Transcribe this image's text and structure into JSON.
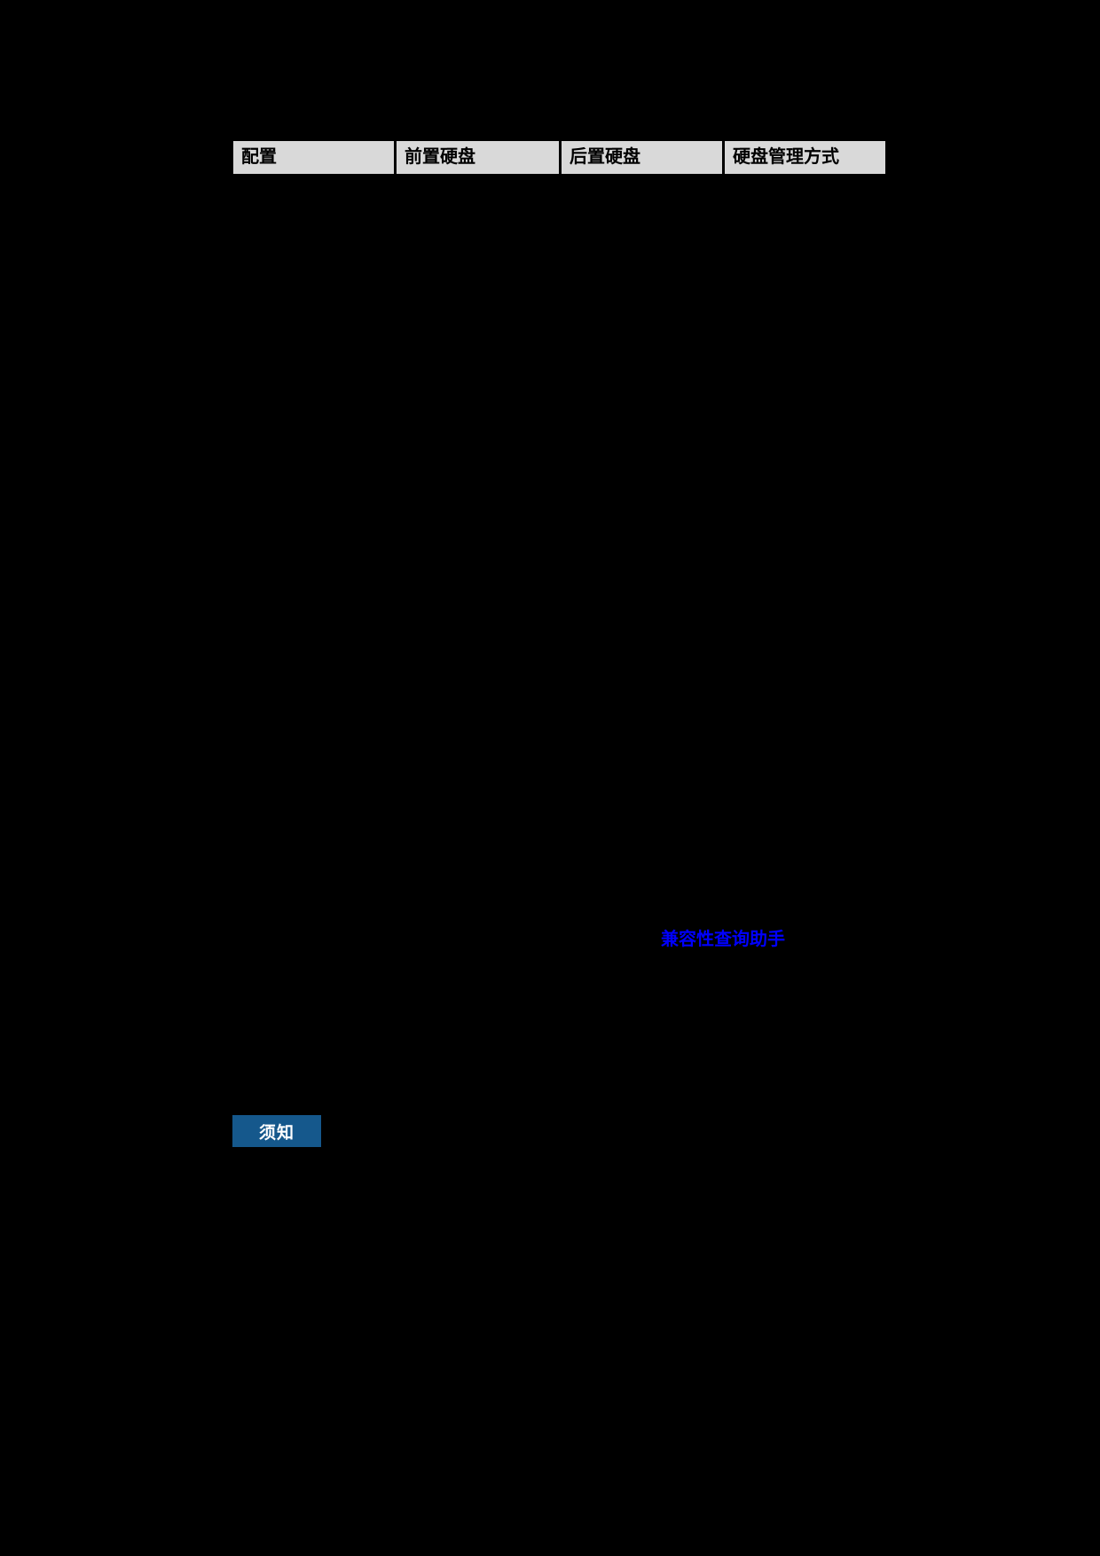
{
  "page": {
    "background": "#000000"
  },
  "colors": {
    "table_header_bg": "#D9D9D9",
    "table_border": "#000000",
    "link_blue": "#0000FF",
    "notice_bg": "#15588C",
    "notice_text": "#FFFFFF"
  },
  "table": {
    "headers": [
      {
        "label": "配置"
      },
      {
        "label": "前置硬盘"
      },
      {
        "label": "后置硬盘"
      },
      {
        "label": "硬盘管理方式"
      }
    ]
  },
  "link": {
    "label": "兼容性查询助手"
  },
  "notice": {
    "label": "须知"
  }
}
